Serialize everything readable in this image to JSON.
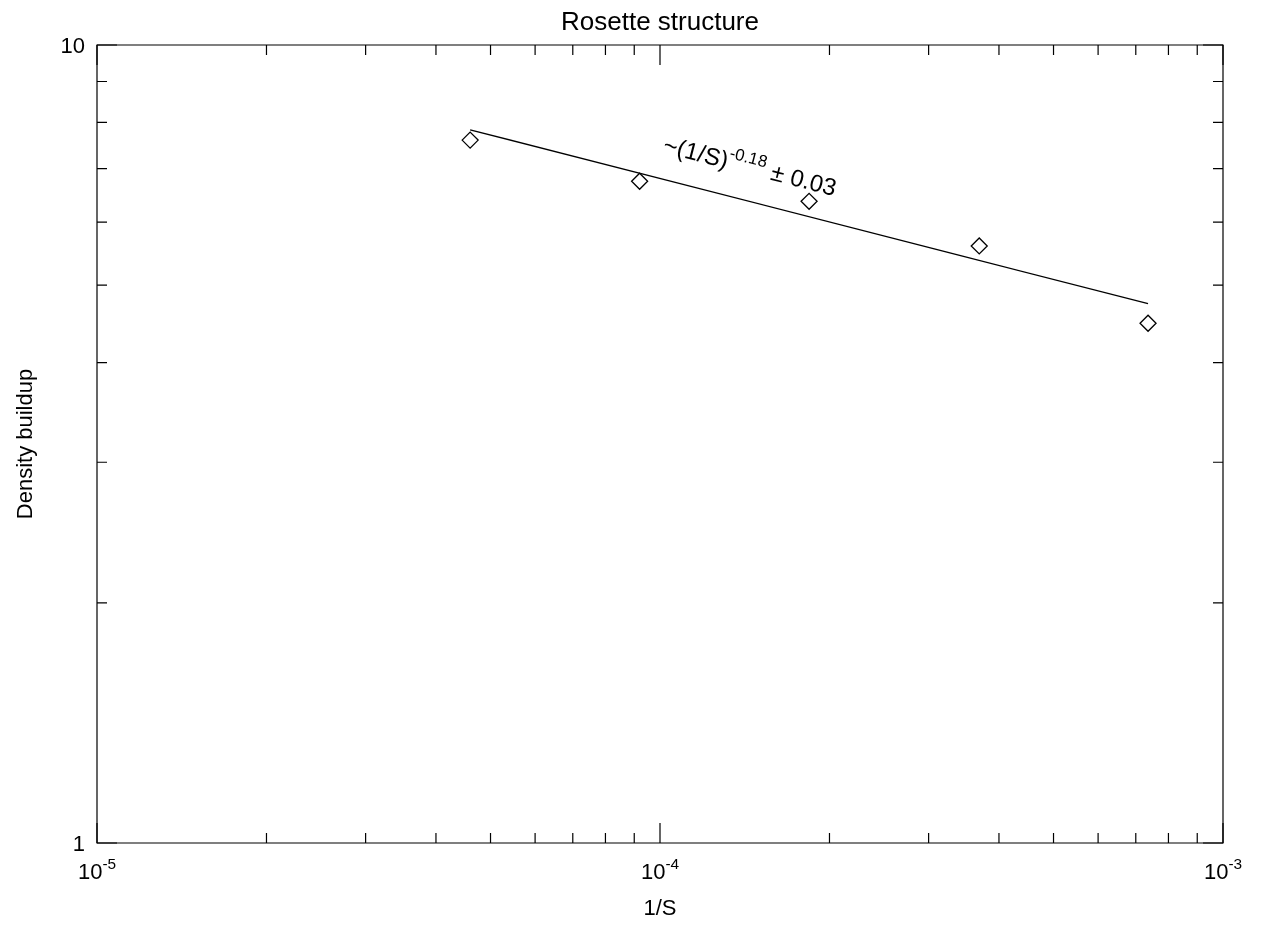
{
  "chart_data": {
    "type": "scatter",
    "title": "Rosette structure",
    "xlabel": "1/S",
    "ylabel": "Density buildup",
    "log": "xy",
    "grid": false,
    "legend": false,
    "marker": "diamond",
    "x": [
      4.6e-05,
      9.2e-05,
      0.000184,
      0.000369,
      0.000736
    ],
    "series": [
      {
        "color": "#000000",
        "values": [
          7.6,
          6.75,
          6.37,
          5.6,
          4.48
        ]
      },
      {
        "type": "line",
        "color": "#000000",
        "marker": "none",
        "line_style": "solid",
        "x": [
          4.6e-05,
          0.000736
        ],
        "values": [
          7.83,
          4.74
        ]
      }
    ],
    "xlim": [
      1e-05,
      0.001
    ],
    "ylim": [
      1,
      10
    ],
    "xticks": [
      {
        "value": 1e-05,
        "label": "10$^{-5}$"
      },
      {
        "value": 2e-05,
        "label": null
      },
      {
        "value": 3e-05,
        "label": null
      },
      {
        "value": 4e-05,
        "label": null
      },
      {
        "value": 5e-05,
        "label": null
      },
      {
        "value": 6e-05,
        "label": null
      },
      {
        "value": 7e-05,
        "label": null
      },
      {
        "value": 8e-05,
        "label": null
      },
      {
        "value": 9e-05,
        "label": null
      },
      {
        "value": 0.0001,
        "label": "10$^{-4}$"
      },
      {
        "value": 0.0002,
        "label": null
      },
      {
        "value": 0.0003,
        "label": null
      },
      {
        "value": 0.0004,
        "label": null
      },
      {
        "value": 0.0005,
        "label": null
      },
      {
        "value": 0.0006,
        "label": null
      },
      {
        "value": 0.0007,
        "label": null
      },
      {
        "value": 0.0008,
        "label": null
      },
      {
        "value": 0.0009,
        "label": null
      },
      {
        "value": 0.001,
        "label": "10$^{-3}$"
      }
    ],
    "yticks": [
      1,
      {
        "value": 2,
        "label": null
      },
      {
        "value": 3,
        "label": null
      },
      {
        "value": 4,
        "label": null
      },
      {
        "value": 5,
        "label": null
      },
      {
        "value": 6,
        "label": null
      },
      {
        "value": 7,
        "label": null
      },
      {
        "value": 8,
        "label": null
      },
      {
        "value": 9,
        "label": null
      },
      10
    ],
    "annotations": [
      "~(1/S)$^{-0.18}$ ± 0.03"
    ]
  }
}
